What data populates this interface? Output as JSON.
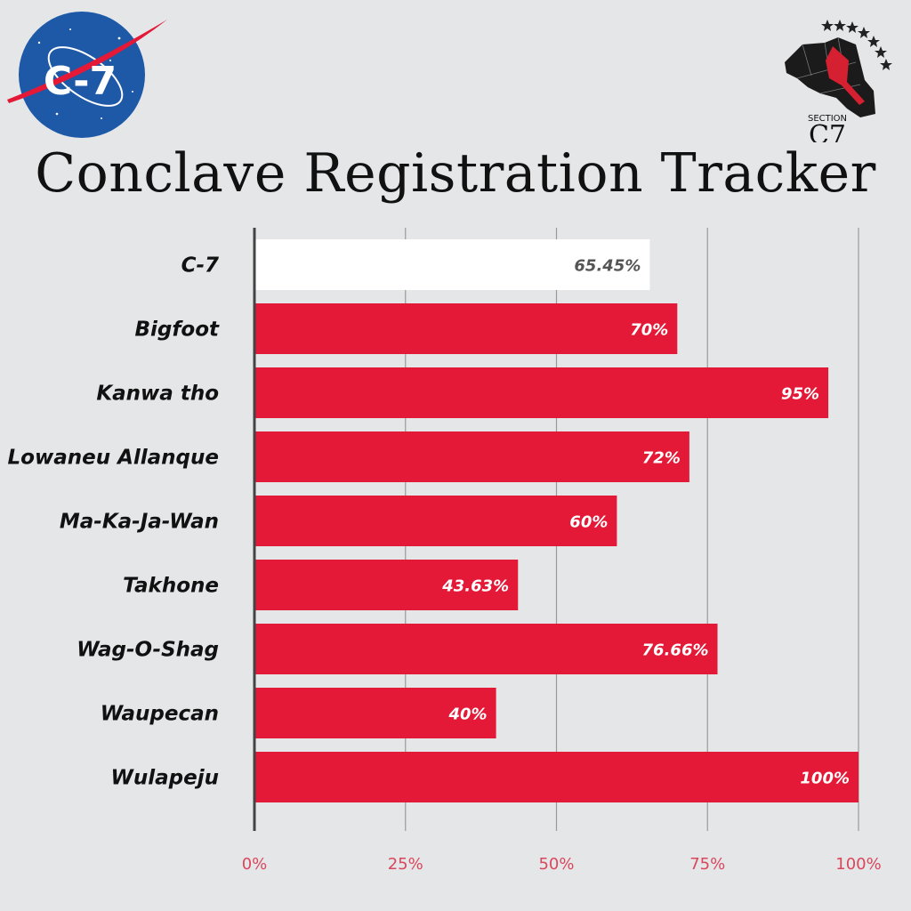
{
  "title": "Conclave Registration Tracker",
  "logos": {
    "left": {
      "text": "C-7"
    },
    "right": {
      "section": "SECTION",
      "code": "C7"
    }
  },
  "colors": {
    "background": "#e5e6e8",
    "bar": "#e31937",
    "highlight_bar": "#ffffff",
    "axis": "#444444",
    "grid": "#9a9a9a",
    "tick_label": "#d9475c"
  },
  "chart_data": {
    "type": "bar",
    "orientation": "horizontal",
    "categories": [
      "C-7",
      "Bigfoot",
      "Kanwa tho",
      "Lowaneu Allanque",
      "Ma-Ka-Ja-Wan",
      "Takhone",
      "Wag-O-Shag",
      "Waupecan",
      "Wulapeju"
    ],
    "values": [
      65.45,
      70,
      95,
      72,
      60,
      43.63,
      76.66,
      40,
      100
    ],
    "value_labels": [
      "65.45%",
      "70%",
      "95%",
      "72%",
      "60%",
      "43.63%",
      "76.66%",
      "40%",
      "100%"
    ],
    "highlight": "C-7",
    "xlim": [
      0,
      100
    ],
    "xticks": [
      0,
      25,
      50,
      75,
      100
    ],
    "xtick_labels": [
      "0%",
      "25%",
      "50%",
      "75%",
      "100%"
    ],
    "grid": "vertical"
  }
}
